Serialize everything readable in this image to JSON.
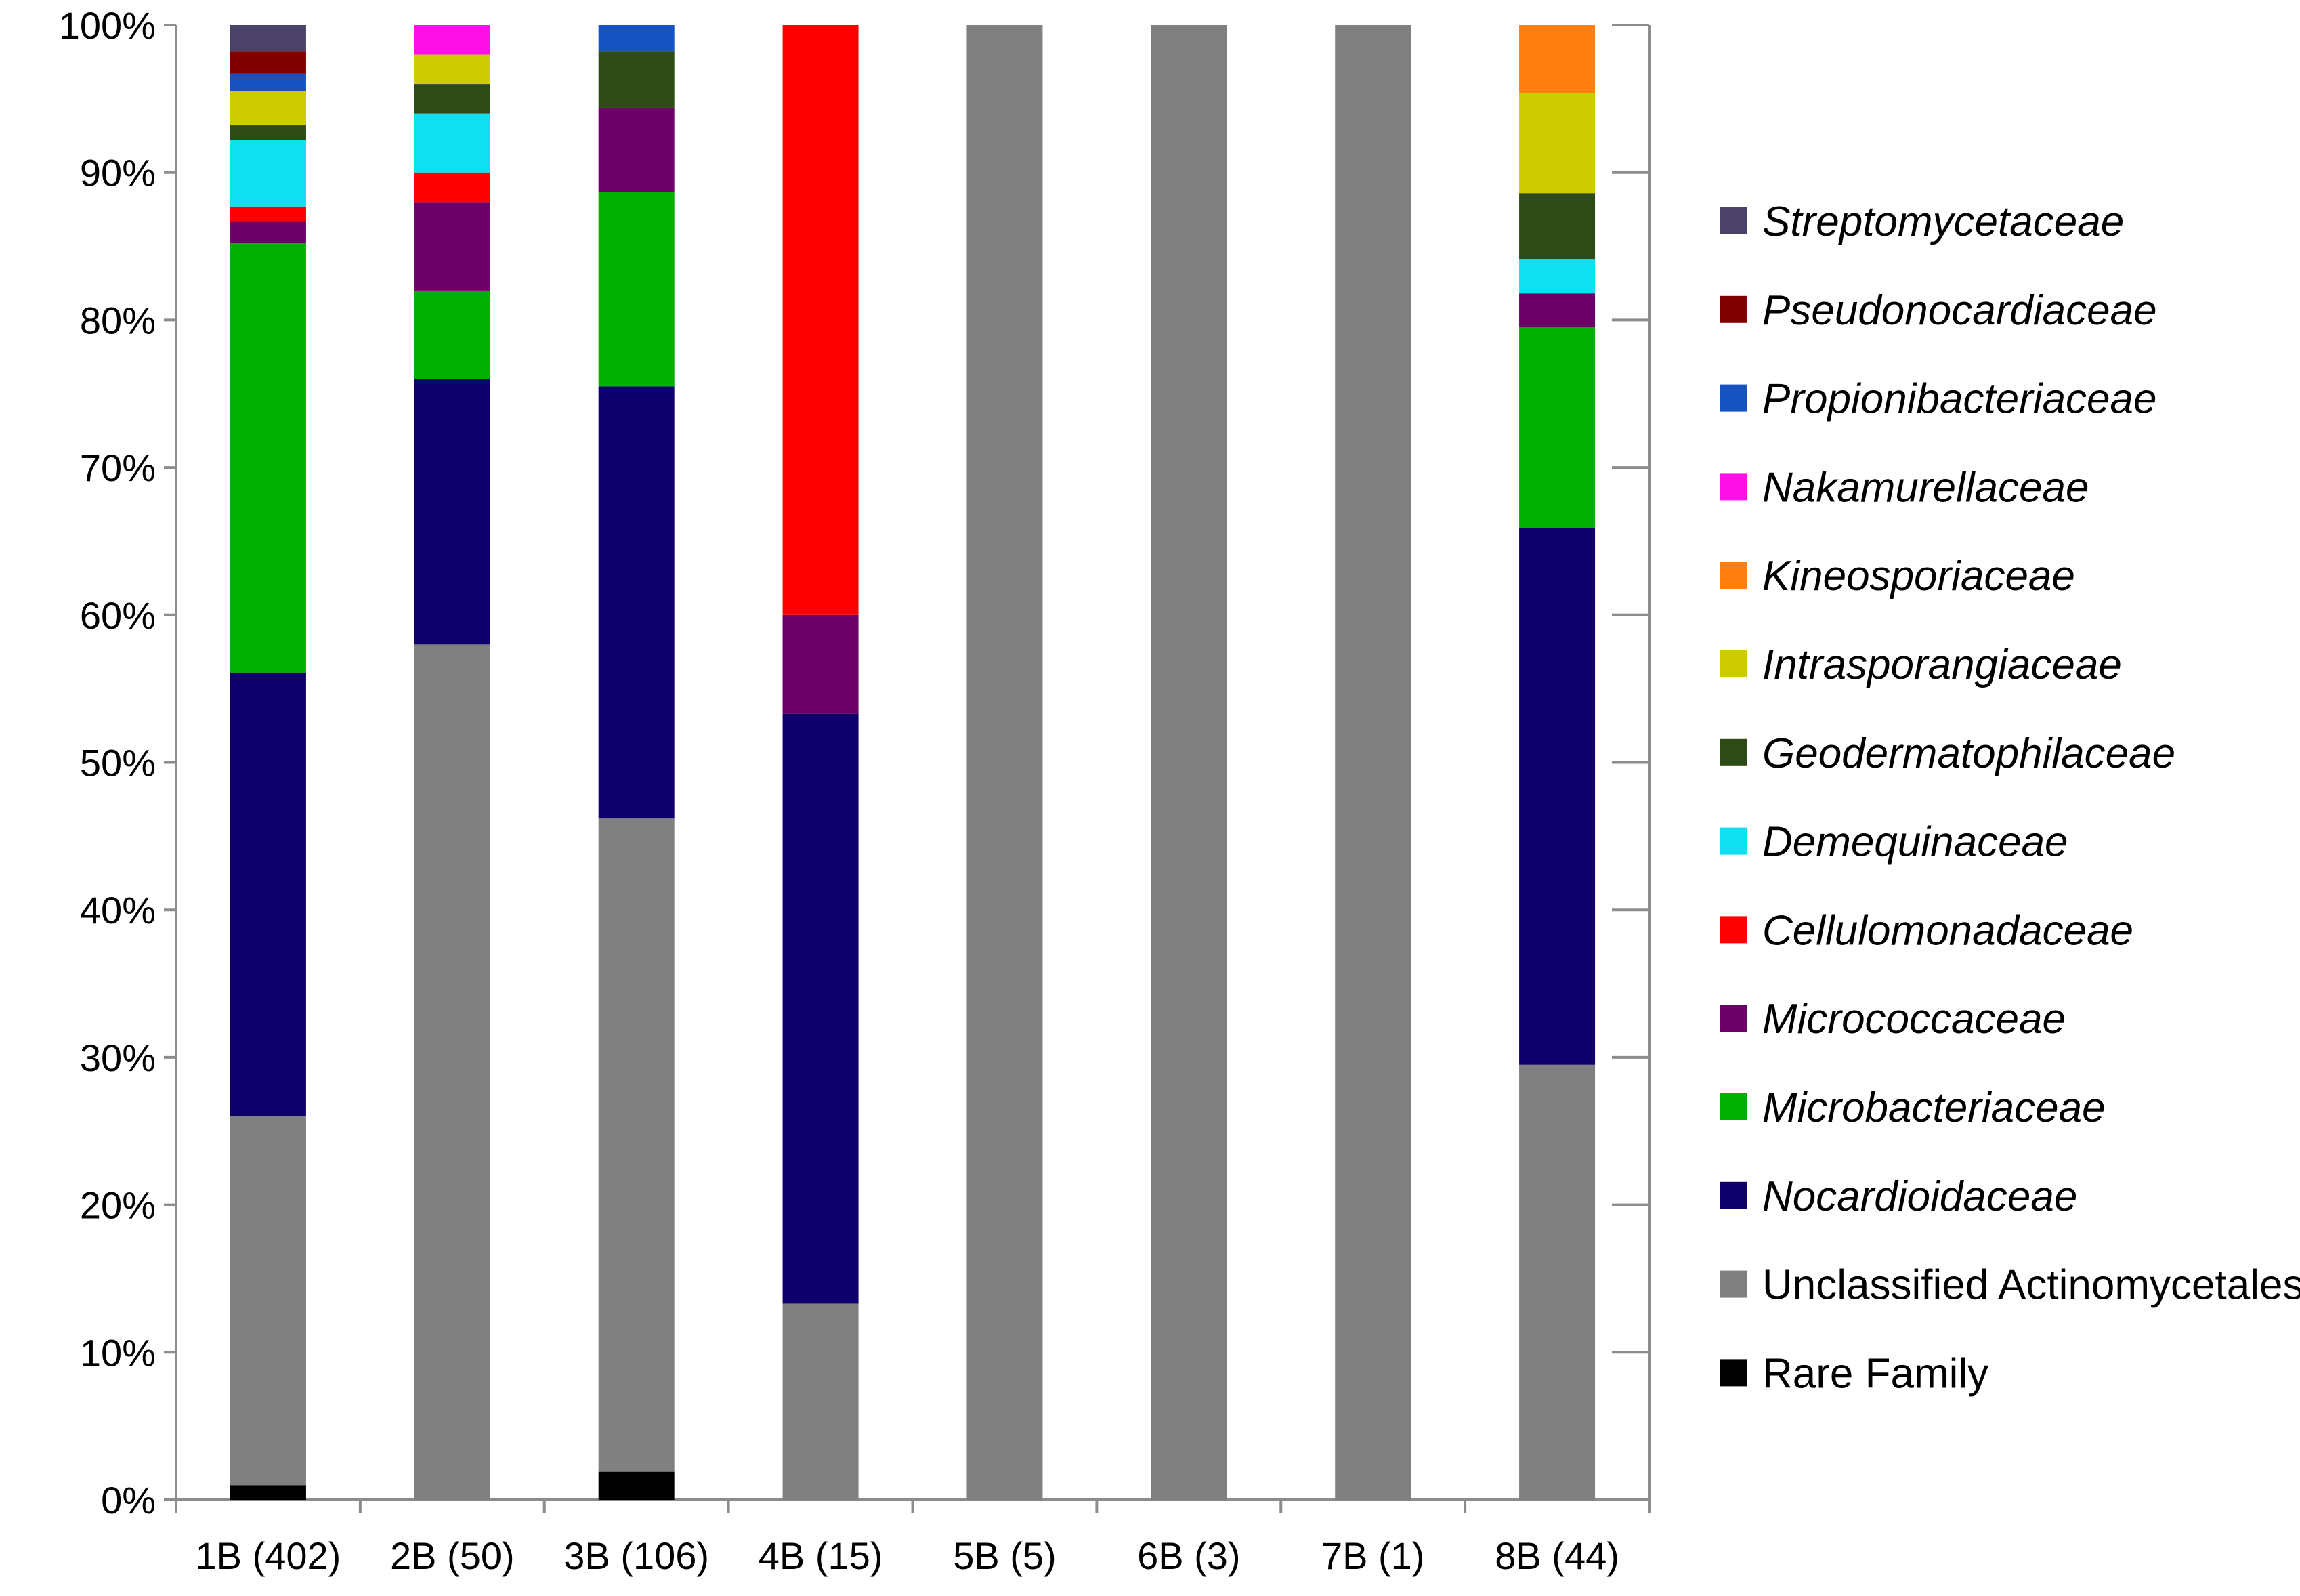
{
  "chart_data": {
    "type": "bar",
    "stacked": "percent",
    "title": "",
    "xlabel": "",
    "ylabel": "",
    "ylim": [
      0,
      100
    ],
    "y_ticks": [
      "0%",
      "10%",
      "20%",
      "30%",
      "40%",
      "50%",
      "60%",
      "70%",
      "80%",
      "90%",
      "100%"
    ],
    "grid": false,
    "legend_position": "right",
    "categories": [
      "1B (402)",
      "2B (50)",
      "3B  (106)",
      "4B  (15)",
      "5B (5)",
      "6B (3)",
      "7B (1)",
      "8B (44)"
    ],
    "series": [
      {
        "name": "Rare Family",
        "color": "#000000",
        "italic": false,
        "values": [
          1.0,
          0,
          1.9,
          0,
          0,
          0,
          0,
          0
        ]
      },
      {
        "name": "Unclassified Actinomycetales",
        "color": "#808080",
        "italic": false,
        "values": [
          25.0,
          58.0,
          44.3,
          13.3,
          100,
          100,
          100,
          29.5
        ]
      },
      {
        "name": "Nocardioidaceae",
        "color": "#0d006b",
        "italic": true,
        "values": [
          30.1,
          18.0,
          29.3,
          40.0,
          0,
          0,
          0,
          36.4
        ]
      },
      {
        "name": "Microbacteriaceae",
        "color": "#00b000",
        "italic": true,
        "values": [
          29.1,
          6.0,
          13.2,
          0,
          0,
          0,
          0,
          13.6
        ]
      },
      {
        "name": "Micrococcaceae",
        "color": "#6a0068",
        "italic": true,
        "values": [
          1.5,
          6.0,
          5.7,
          6.7,
          0,
          0,
          0,
          2.3
        ]
      },
      {
        "name": "Cellulomonadaceae",
        "color": "#ff0000",
        "italic": true,
        "values": [
          1.0,
          2.0,
          0,
          40.0,
          0,
          0,
          0,
          0
        ]
      },
      {
        "name": "Demequinaceae",
        "color": "#10dff0",
        "italic": true,
        "values": [
          4.5,
          4.0,
          0,
          0,
          0,
          0,
          0,
          2.3
        ]
      },
      {
        "name": "Geodermatophilaceae",
        "color": "#2e4a16",
        "italic": true,
        "values": [
          1.0,
          2.0,
          3.8,
          0,
          0,
          0,
          0,
          4.5
        ]
      },
      {
        "name": "Intrasporangiaceae",
        "color": "#cccc00",
        "italic": true,
        "values": [
          2.3,
          2.0,
          0,
          0,
          0,
          0,
          0,
          6.8
        ]
      },
      {
        "name": "Kineosporiaceae",
        "color": "#ff8010",
        "italic": true,
        "values": [
          0,
          0,
          0,
          0,
          0,
          0,
          0,
          4.6
        ]
      },
      {
        "name": "Nakamurellaceae",
        "color": "#ff10e8",
        "italic": true,
        "values": [
          0,
          2.0,
          0,
          0,
          0,
          0,
          0,
          0
        ]
      },
      {
        "name": "Propionibacteriaceae",
        "color": "#1652c0",
        "italic": true,
        "values": [
          1.2,
          0,
          1.8,
          0,
          0,
          0,
          0,
          0
        ]
      },
      {
        "name": "Pseudonocardiaceae",
        "color": "#800000",
        "italic": true,
        "values": [
          1.5,
          0,
          0,
          0,
          0,
          0,
          0,
          0
        ]
      },
      {
        "name": "Streptomycetaceae",
        "color": "#4a4268",
        "italic": true,
        "values": [
          1.8,
          0,
          0,
          0,
          0,
          0,
          0,
          0
        ]
      }
    ]
  }
}
